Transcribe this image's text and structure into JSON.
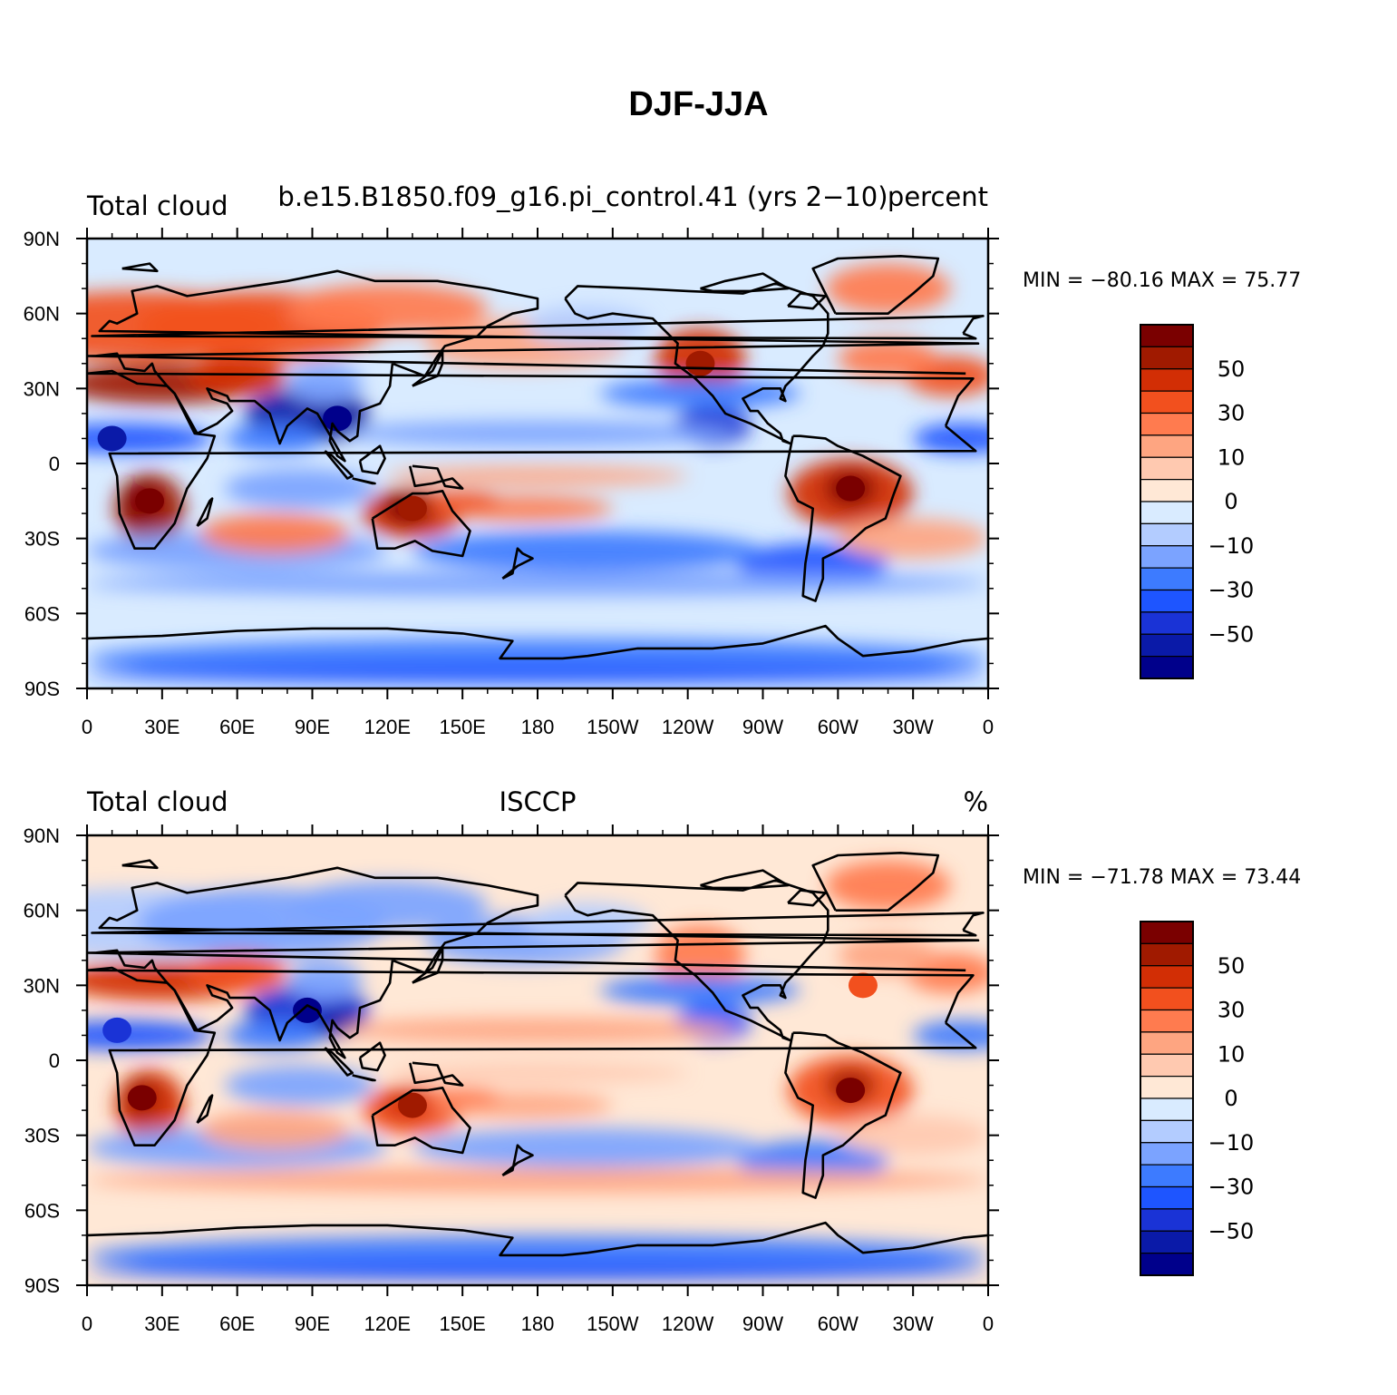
{
  "title": "DJF-JJA",
  "colors": [
    "#00008b",
    "#0a1aa8",
    "#1a33d6",
    "#1e55ff",
    "#3d7bff",
    "#7ba3ff",
    "#b3ccff",
    "#d9ebff",
    "#ffe8d6",
    "#ffc9b0",
    "#fea581",
    "#ff7b4f",
    "#f2501e",
    "#d22e05",
    "#a01a00",
    "#7a0000"
  ],
  "colorbar_labels": [
    "50",
    "30",
    "10",
    "0",
    "−10",
    "−30",
    "−50"
  ],
  "chart_data": [
    {
      "type": "filled-contour-map",
      "left_header": "Total cloud",
      "center_header": "b.e15.B1850.f09_g16.pi_control.41 (yrs 2−10)",
      "right_header": "percent",
      "min_label": "MIN =",
      "min_value": "−80.16",
      "max_label": "MAX =",
      "max_value": "75.77",
      "x_ticks": [
        "0",
        "30E",
        "60E",
        "90E",
        "120E",
        "150E",
        "180",
        "150W",
        "120W",
        "90W",
        "60W",
        "30W",
        "0"
      ],
      "y_ticks": [
        "90N",
        "60N",
        "30N",
        "0",
        "30S",
        "60S",
        "90S"
      ],
      "lon_range": [
        0,
        360
      ],
      "lat_range": [
        -90,
        90
      ],
      "contour_levels": [
        -70,
        -60,
        -50,
        -40,
        -30,
        -20,
        -10,
        -5,
        0,
        5,
        10,
        20,
        30,
        40,
        50,
        60,
        70
      ],
      "features": [
        {
          "lon": 25,
          "lat": -15,
          "value": 60
        },
        {
          "lon": 305,
          "lat": -10,
          "value": 65
        },
        {
          "lon": 130,
          "lat": -18,
          "value": 55
        },
        {
          "lon": 100,
          "lat": 18,
          "value": -70
        },
        {
          "lon": 245,
          "lat": 40,
          "value": 55
        },
        {
          "lon": 10,
          "lat": 10,
          "value": -55
        }
      ]
    },
    {
      "type": "filled-contour-map",
      "left_header": "Total cloud",
      "center_header": "ISCCP",
      "right_header": "%",
      "min_label": "MIN =",
      "min_value": "−71.78",
      "max_label": "MAX =",
      "max_value": "73.44",
      "x_ticks": [
        "0",
        "30E",
        "60E",
        "90E",
        "120E",
        "150E",
        "180",
        "150W",
        "120W",
        "90W",
        "60W",
        "30W",
        "0"
      ],
      "y_ticks": [
        "90N",
        "60N",
        "30N",
        "0",
        "30S",
        "60S",
        "90S"
      ],
      "lon_range": [
        0,
        360
      ],
      "lat_range": [
        -90,
        90
      ],
      "contour_levels": [
        -70,
        -60,
        -50,
        -40,
        -30,
        -20,
        -10,
        -5,
        0,
        5,
        10,
        20,
        30,
        40,
        50,
        60,
        70
      ],
      "features": [
        {
          "lon": 22,
          "lat": -15,
          "value": 65
        },
        {
          "lon": 305,
          "lat": -12,
          "value": 60
        },
        {
          "lon": 130,
          "lat": -18,
          "value": 55
        },
        {
          "lon": 88,
          "lat": 20,
          "value": -65
        },
        {
          "lon": 310,
          "lat": 30,
          "value": 30
        },
        {
          "lon": 12,
          "lat": 12,
          "value": -50
        }
      ]
    }
  ]
}
